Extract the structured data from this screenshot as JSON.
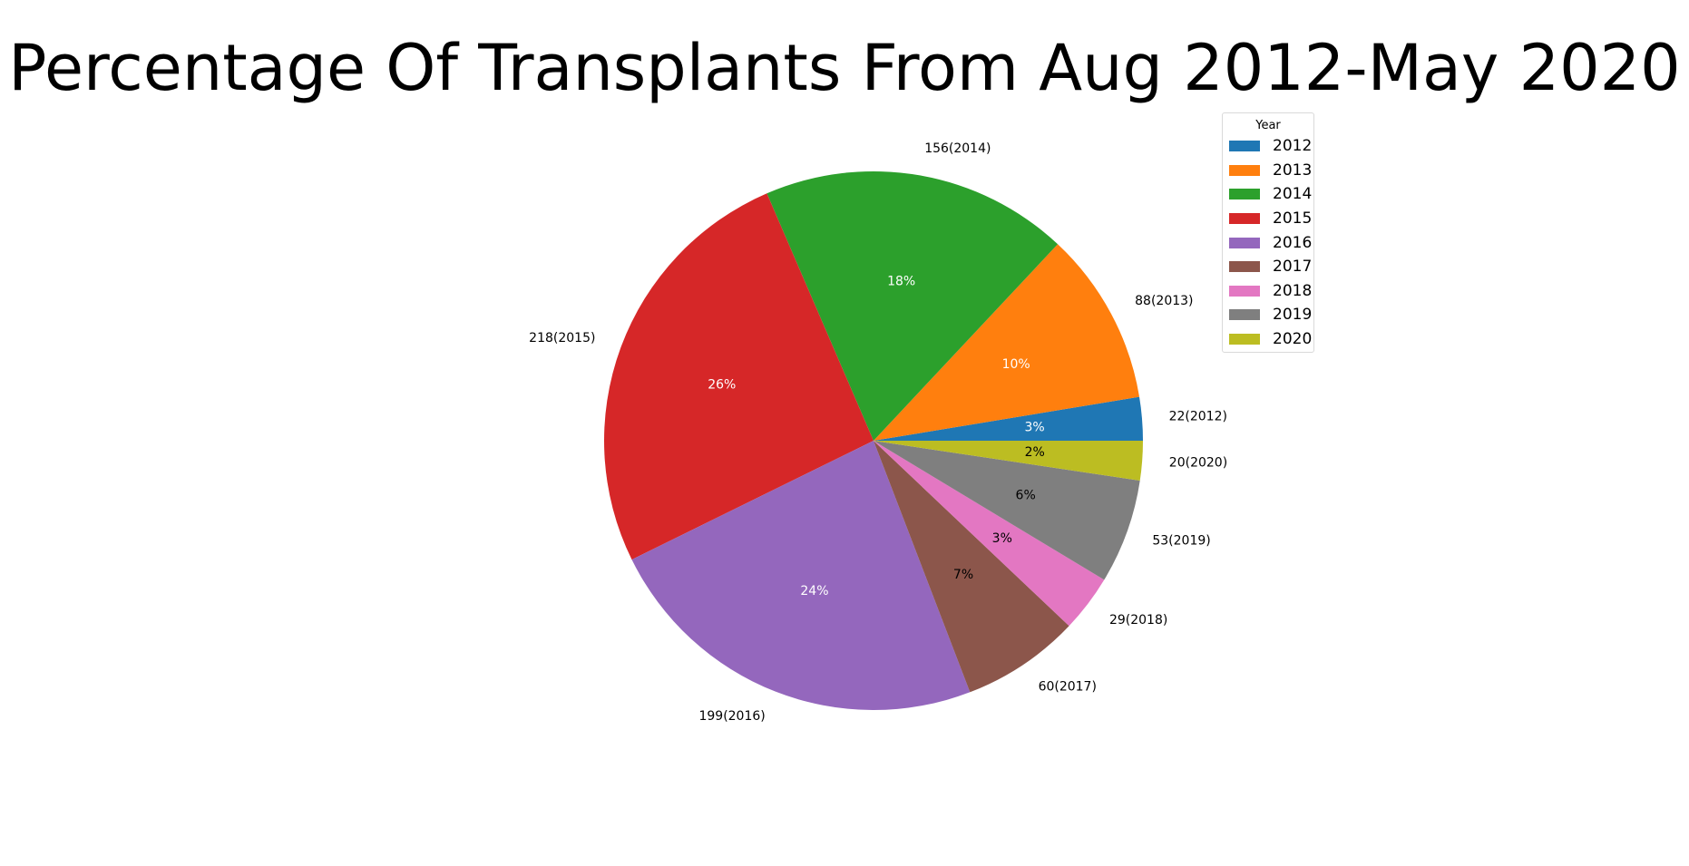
{
  "chart_data": {
    "type": "pie",
    "title": "Percentage Of Transplants From Aug 2012-May 2020",
    "legend_title": "Year",
    "legend_position": "top-right",
    "start_angle_deg": 0,
    "direction": "counterclockwise",
    "slices": [
      {
        "year": "2012",
        "value": 22,
        "outer_label": "22(2012)",
        "pct_label": "3%",
        "color": "#1f77b4",
        "pct_color": "#ffffff"
      },
      {
        "year": "2013",
        "value": 88,
        "outer_label": "88(2013)",
        "pct_label": "10%",
        "color": "#ff7f0e",
        "pct_color": "#ffffff"
      },
      {
        "year": "2014",
        "value": 156,
        "outer_label": "156(2014)",
        "pct_label": "18%",
        "color": "#2ca02c",
        "pct_color": "#ffffff"
      },
      {
        "year": "2015",
        "value": 218,
        "outer_label": "218(2015)",
        "pct_label": "26%",
        "color": "#d62728",
        "pct_color": "#ffffff"
      },
      {
        "year": "2016",
        "value": 199,
        "outer_label": "199(2016)",
        "pct_label": "24%",
        "color": "#9467bd",
        "pct_color": "#ffffff"
      },
      {
        "year": "2017",
        "value": 60,
        "outer_label": "60(2017)",
        "pct_label": "7%",
        "color": "#8c564b",
        "pct_color": "#000000"
      },
      {
        "year": "2018",
        "value": 29,
        "outer_label": "29(2018)",
        "pct_label": "3%",
        "color": "#e377c2",
        "pct_color": "#000000"
      },
      {
        "year": "2019",
        "value": 53,
        "outer_label": "53(2019)",
        "pct_label": "6%",
        "color": "#7f7f7f",
        "pct_color": "#000000"
      },
      {
        "year": "2020",
        "value": 20,
        "outer_label": "20(2020)",
        "pct_label": "2%",
        "color": "#bcbd22",
        "pct_color": "#000000"
      }
    ]
  }
}
